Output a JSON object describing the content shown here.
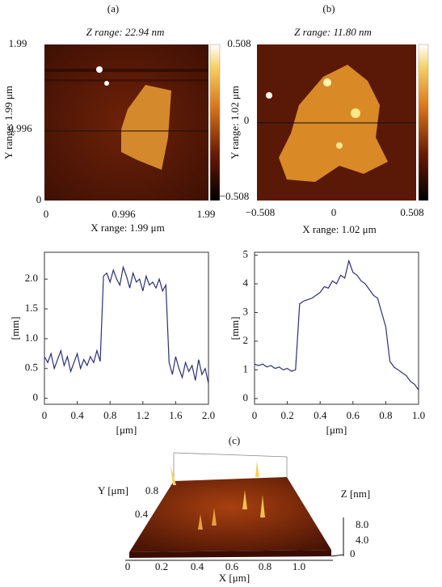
{
  "panels": [
    {
      "label": "(a)",
      "z_range": "Z range: 22.94 nm",
      "y_label": "Y range: 1.99 μm",
      "x_label": "X range: 1.99 μm",
      "y_ticks": [
        "1.99",
        "0.996",
        "0"
      ],
      "x_ticks": [
        "0",
        "0.996",
        "1.99"
      ]
    },
    {
      "label": "(b)",
      "z_range": "Z range: 11.80 nm",
      "y_label": "Y range: 1.02 μm",
      "x_label": "X range: 1.02 μm",
      "y_ticks": [
        "0.508",
        "0",
        "−0.508"
      ],
      "x_ticks": [
        "−0.508",
        "0",
        "0.508"
      ]
    }
  ],
  "chart_data": [
    {
      "type": "line",
      "xlabel": "[μm]",
      "ylabel": "[mm]",
      "color": "#2a2f7a",
      "x": [
        0,
        0.04,
        0.08,
        0.12,
        0.16,
        0.2,
        0.24,
        0.28,
        0.32,
        0.36,
        0.4,
        0.44,
        0.48,
        0.52,
        0.56,
        0.6,
        0.64,
        0.68,
        0.72,
        0.76,
        0.8,
        0.84,
        0.88,
        0.92,
        0.96,
        1.0,
        1.04,
        1.08,
        1.12,
        1.16,
        1.2,
        1.24,
        1.28,
        1.32,
        1.36,
        1.4,
        1.44,
        1.48,
        1.52,
        1.56,
        1.6,
        1.64,
        1.68,
        1.72,
        1.76,
        1.8,
        1.84,
        1.88,
        1.92,
        1.96,
        2.0
      ],
      "series": [
        {
          "values": [
            0.7,
            0.6,
            0.75,
            0.5,
            0.65,
            0.8,
            0.55,
            0.7,
            0.45,
            0.6,
            0.75,
            0.5,
            0.65,
            0.55,
            0.7,
            0.6,
            0.8,
            0.62,
            2.05,
            2.1,
            1.95,
            2.15,
            2.0,
            1.9,
            2.2,
            2.05,
            1.85,
            2.1,
            1.95,
            2.0,
            1.8,
            2.05,
            1.9,
            1.95,
            1.85,
            2.0,
            1.8,
            1.9,
            0.6,
            0.4,
            0.7,
            0.5,
            0.35,
            0.6,
            0.45,
            0.55,
            0.3,
            0.65,
            0.4,
            0.5,
            0.25
          ]
        }
      ],
      "xlim": [
        0,
        2.0
      ],
      "ylim": [
        -0.1,
        2.45
      ],
      "xticks": [
        0,
        0.4,
        0.8,
        1.2,
        1.6,
        {
          "value": 2.0,
          "label": "2.0"
        }
      ],
      "yticks": [
        0,
        0.5,
        {
          "value": 1.0,
          "label": "1.0"
        },
        1.5,
        {
          "value": 2.0,
          "label": "2.0"
        }
      ]
    },
    {
      "type": "line",
      "xlabel": "[μm]",
      "ylabel": "[mm]",
      "color": "#2a2f7a",
      "x": [
        0,
        0.025,
        0.05,
        0.075,
        0.1,
        0.125,
        0.15,
        0.175,
        0.2,
        0.225,
        0.25,
        0.275,
        0.3,
        0.325,
        0.35,
        0.375,
        0.4,
        0.425,
        0.45,
        0.475,
        0.5,
        0.525,
        0.55,
        0.575,
        0.6,
        0.625,
        0.65,
        0.675,
        0.7,
        0.725,
        0.75,
        0.775,
        0.8,
        0.825,
        0.85,
        0.875,
        0.9,
        0.925,
        0.95,
        0.975,
        1.0
      ],
      "series": [
        {
          "values": [
            1.2,
            1.15,
            1.2,
            1.1,
            1.15,
            1.05,
            1.1,
            1.0,
            1.05,
            0.95,
            1.0,
            3.3,
            3.4,
            3.45,
            3.5,
            3.6,
            3.7,
            3.9,
            3.85,
            4.1,
            4.0,
            4.3,
            4.2,
            4.8,
            4.4,
            4.3,
            4.1,
            4.0,
            3.8,
            3.6,
            3.5,
            3.0,
            2.5,
            1.3,
            1.1,
            1.0,
            0.9,
            0.8,
            0.6,
            0.5,
            0.3
          ]
        }
      ],
      "xlim": [
        0,
        1.0
      ],
      "ylim": [
        -0.2,
        5.1
      ],
      "xticks": [
        0,
        0.2,
        0.4,
        0.6,
        0.8,
        {
          "value": 1.0,
          "label": "1.0"
        }
      ],
      "yticks": [
        0,
        1,
        2,
        3,
        4,
        5
      ]
    }
  ],
  "surface": {
    "label": "(c)",
    "x_label": "X [μm]",
    "y_label": "Y [μm]",
    "z_label": "Z [nm]",
    "x_ticks": [
      "0",
      "0.2",
      "0.4",
      "0.6",
      "0.8",
      "1.0"
    ],
    "y_ticks": [
      "0.8",
      "0.4"
    ],
    "z_ticks": [
      "8.0",
      "4.0",
      "0"
    ]
  }
}
